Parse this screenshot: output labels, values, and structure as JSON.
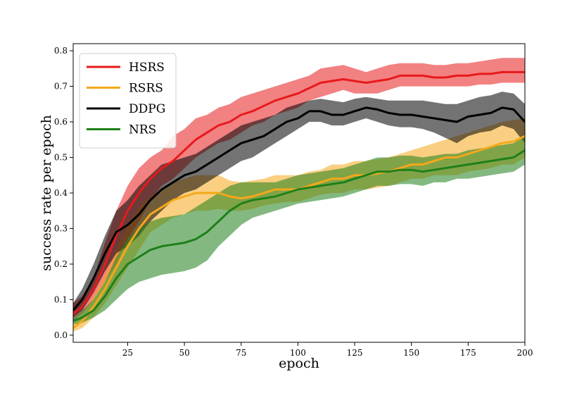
{
  "chart_data": {
    "type": "line",
    "title": "",
    "xlabel": "epoch",
    "ylabel": "success rate per epoch",
    "xlim": [
      1,
      200
    ],
    "ylim": [
      -0.02,
      0.82
    ],
    "xticks": [
      25,
      50,
      75,
      100,
      125,
      150,
      175,
      200
    ],
    "yticks": [
      0.0,
      0.1,
      0.2,
      0.3,
      0.4,
      0.5,
      0.6,
      0.7,
      0.8
    ],
    "grid": false,
    "legend_position": "top-left",
    "x": [
      1,
      5,
      10,
      15,
      20,
      25,
      30,
      35,
      40,
      45,
      50,
      55,
      60,
      65,
      70,
      75,
      80,
      85,
      90,
      95,
      100,
      105,
      110,
      115,
      120,
      125,
      130,
      135,
      140,
      145,
      150,
      155,
      160,
      165,
      170,
      175,
      180,
      185,
      190,
      195,
      200
    ],
    "series": [
      {
        "name": "HSRS",
        "color": "#e8191b",
        "mean": [
          0.06,
          0.08,
          0.13,
          0.2,
          0.28,
          0.35,
          0.4,
          0.44,
          0.47,
          0.49,
          0.52,
          0.55,
          0.57,
          0.59,
          0.6,
          0.62,
          0.63,
          0.645,
          0.66,
          0.67,
          0.68,
          0.695,
          0.71,
          0.715,
          0.72,
          0.715,
          0.71,
          0.715,
          0.72,
          0.73,
          0.73,
          0.73,
          0.725,
          0.725,
          0.73,
          0.73,
          0.735,
          0.735,
          0.74,
          0.74,
          0.74
        ],
        "lower": [
          0.04,
          0.06,
          0.1,
          0.15,
          0.2,
          0.27,
          0.32,
          0.38,
          0.42,
          0.44,
          0.47,
          0.5,
          0.52,
          0.54,
          0.55,
          0.57,
          0.59,
          0.6,
          0.62,
          0.63,
          0.64,
          0.66,
          0.67,
          0.68,
          0.69,
          0.68,
          0.68,
          0.68,
          0.69,
          0.7,
          0.7,
          0.7,
          0.7,
          0.7,
          0.7,
          0.7,
          0.705,
          0.705,
          0.71,
          0.71,
          0.71
        ],
        "upper": [
          0.09,
          0.11,
          0.16,
          0.26,
          0.35,
          0.42,
          0.47,
          0.5,
          0.52,
          0.56,
          0.58,
          0.61,
          0.62,
          0.64,
          0.65,
          0.67,
          0.68,
          0.69,
          0.7,
          0.71,
          0.72,
          0.73,
          0.75,
          0.755,
          0.76,
          0.75,
          0.74,
          0.75,
          0.76,
          0.765,
          0.765,
          0.765,
          0.76,
          0.76,
          0.765,
          0.765,
          0.77,
          0.775,
          0.78,
          0.78,
          0.78
        ]
      },
      {
        "name": "RSRS",
        "color": "#f5a81a",
        "mean": [
          0.02,
          0.04,
          0.08,
          0.13,
          0.19,
          0.25,
          0.3,
          0.34,
          0.36,
          0.38,
          0.39,
          0.4,
          0.4,
          0.4,
          0.39,
          0.385,
          0.39,
          0.4,
          0.41,
          0.41,
          0.41,
          0.42,
          0.43,
          0.44,
          0.44,
          0.45,
          0.45,
          0.455,
          0.46,
          0.47,
          0.48,
          0.48,
          0.49,
          0.5,
          0.5,
          0.51,
          0.52,
          0.53,
          0.54,
          0.545,
          0.56
        ],
        "lower": [
          0.01,
          0.02,
          0.05,
          0.09,
          0.14,
          0.19,
          0.24,
          0.29,
          0.31,
          0.33,
          0.34,
          0.35,
          0.35,
          0.355,
          0.35,
          0.35,
          0.355,
          0.365,
          0.37,
          0.375,
          0.375,
          0.385,
          0.395,
          0.4,
          0.4,
          0.41,
          0.41,
          0.415,
          0.42,
          0.43,
          0.44,
          0.44,
          0.45,
          0.45,
          0.45,
          0.46,
          0.465,
          0.47,
          0.48,
          0.48,
          0.5
        ],
        "upper": [
          0.03,
          0.06,
          0.11,
          0.17,
          0.24,
          0.31,
          0.36,
          0.39,
          0.41,
          0.43,
          0.44,
          0.45,
          0.45,
          0.45,
          0.435,
          0.43,
          0.435,
          0.44,
          0.45,
          0.45,
          0.45,
          0.46,
          0.465,
          0.48,
          0.48,
          0.49,
          0.49,
          0.495,
          0.5,
          0.51,
          0.52,
          0.53,
          0.54,
          0.55,
          0.56,
          0.57,
          0.58,
          0.59,
          0.6,
          0.605,
          0.61
        ]
      },
      {
        "name": "DDPG",
        "color": "#000000",
        "mean": [
          0.07,
          0.1,
          0.16,
          0.23,
          0.29,
          0.31,
          0.34,
          0.38,
          0.41,
          0.43,
          0.45,
          0.46,
          0.48,
          0.5,
          0.52,
          0.54,
          0.55,
          0.56,
          0.58,
          0.6,
          0.61,
          0.63,
          0.63,
          0.62,
          0.62,
          0.63,
          0.64,
          0.635,
          0.625,
          0.62,
          0.62,
          0.615,
          0.61,
          0.605,
          0.6,
          0.615,
          0.62,
          0.625,
          0.64,
          0.635,
          0.6
        ],
        "lower": [
          0.05,
          0.07,
          0.12,
          0.18,
          0.23,
          0.25,
          0.28,
          0.32,
          0.35,
          0.38,
          0.4,
          0.41,
          0.43,
          0.45,
          0.47,
          0.49,
          0.5,
          0.52,
          0.54,
          0.56,
          0.58,
          0.6,
          0.6,
          0.59,
          0.59,
          0.6,
          0.61,
          0.6,
          0.59,
          0.585,
          0.585,
          0.58,
          0.57,
          0.555,
          0.54,
          0.56,
          0.57,
          0.575,
          0.59,
          0.58,
          0.54
        ],
        "upper": [
          0.09,
          0.13,
          0.2,
          0.28,
          0.35,
          0.38,
          0.42,
          0.45,
          0.48,
          0.49,
          0.5,
          0.51,
          0.53,
          0.55,
          0.57,
          0.59,
          0.6,
          0.61,
          0.62,
          0.64,
          0.65,
          0.66,
          0.665,
          0.66,
          0.655,
          0.665,
          0.67,
          0.665,
          0.66,
          0.66,
          0.66,
          0.66,
          0.655,
          0.65,
          0.65,
          0.66,
          0.67,
          0.675,
          0.685,
          0.68,
          0.65
        ]
      },
      {
        "name": "NRS",
        "color": "#1e8019",
        "mean": [
          0.04,
          0.05,
          0.07,
          0.11,
          0.16,
          0.2,
          0.22,
          0.24,
          0.25,
          0.255,
          0.26,
          0.27,
          0.29,
          0.32,
          0.35,
          0.37,
          0.38,
          0.385,
          0.39,
          0.4,
          0.41,
          0.415,
          0.42,
          0.425,
          0.43,
          0.44,
          0.45,
          0.46,
          0.46,
          0.465,
          0.465,
          0.46,
          0.465,
          0.47,
          0.475,
          0.48,
          0.485,
          0.49,
          0.495,
          0.5,
          0.52
        ],
        "lower": [
          0.03,
          0.035,
          0.05,
          0.07,
          0.1,
          0.13,
          0.15,
          0.16,
          0.17,
          0.175,
          0.18,
          0.19,
          0.21,
          0.25,
          0.28,
          0.31,
          0.33,
          0.34,
          0.35,
          0.36,
          0.37,
          0.375,
          0.38,
          0.385,
          0.39,
          0.4,
          0.41,
          0.42,
          0.42,
          0.425,
          0.425,
          0.42,
          0.43,
          0.43,
          0.44,
          0.44,
          0.445,
          0.45,
          0.455,
          0.46,
          0.48
        ],
        "upper": [
          0.05,
          0.07,
          0.1,
          0.15,
          0.22,
          0.27,
          0.3,
          0.32,
          0.33,
          0.335,
          0.34,
          0.36,
          0.38,
          0.4,
          0.42,
          0.43,
          0.43,
          0.43,
          0.43,
          0.44,
          0.45,
          0.455,
          0.46,
          0.465,
          0.47,
          0.48,
          0.49,
          0.5,
          0.5,
          0.505,
          0.505,
          0.5,
          0.505,
          0.51,
          0.51,
          0.52,
          0.525,
          0.53,
          0.535,
          0.54,
          0.56
        ]
      }
    ]
  }
}
